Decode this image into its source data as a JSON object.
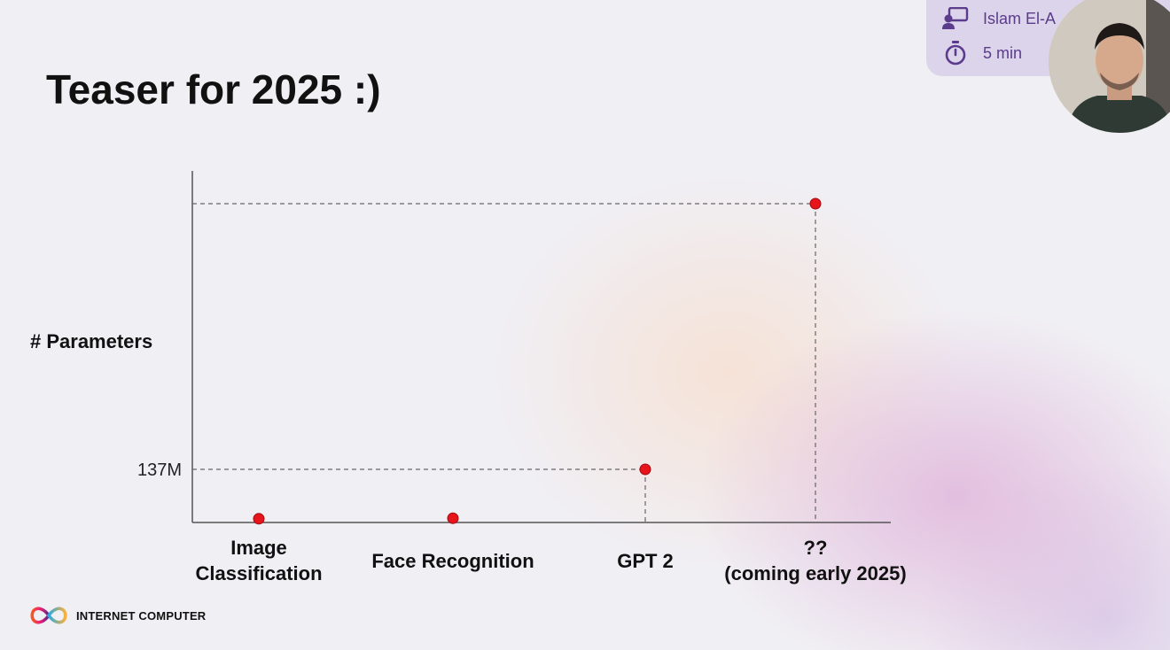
{
  "slide": {
    "title": "Teaser for 2025 :)"
  },
  "presenter": {
    "name": "Islam El-A",
    "duration": "5 min",
    "icons": [
      "presenter-icon",
      "timer-icon"
    ]
  },
  "footer": {
    "brand": "INTERNET COMPUTER",
    "logo": "infinity-logo"
  },
  "colors": {
    "point": "#e8141b",
    "axis": "#555555",
    "guide": "#666666",
    "accent": "#5b3b8c"
  },
  "chart_data": {
    "type": "scatter",
    "title": "",
    "xlabel": "",
    "ylabel": "# Parameters",
    "categories": [
      "Image\nClassification",
      "Face Recognition",
      "GPT 2",
      "??\n(coming early 2025)"
    ],
    "y_tick_labels": [
      "137M"
    ],
    "values_relative_to_gpt2": [
      0.07,
      0.08,
      1.0,
      6.0
    ],
    "labelled_values": {
      "GPT 2": "137M"
    },
    "guides_drawn_for": [
      "GPT 2",
      "??\n(coming early 2025)"
    ],
    "grid": false,
    "legend": "none"
  }
}
